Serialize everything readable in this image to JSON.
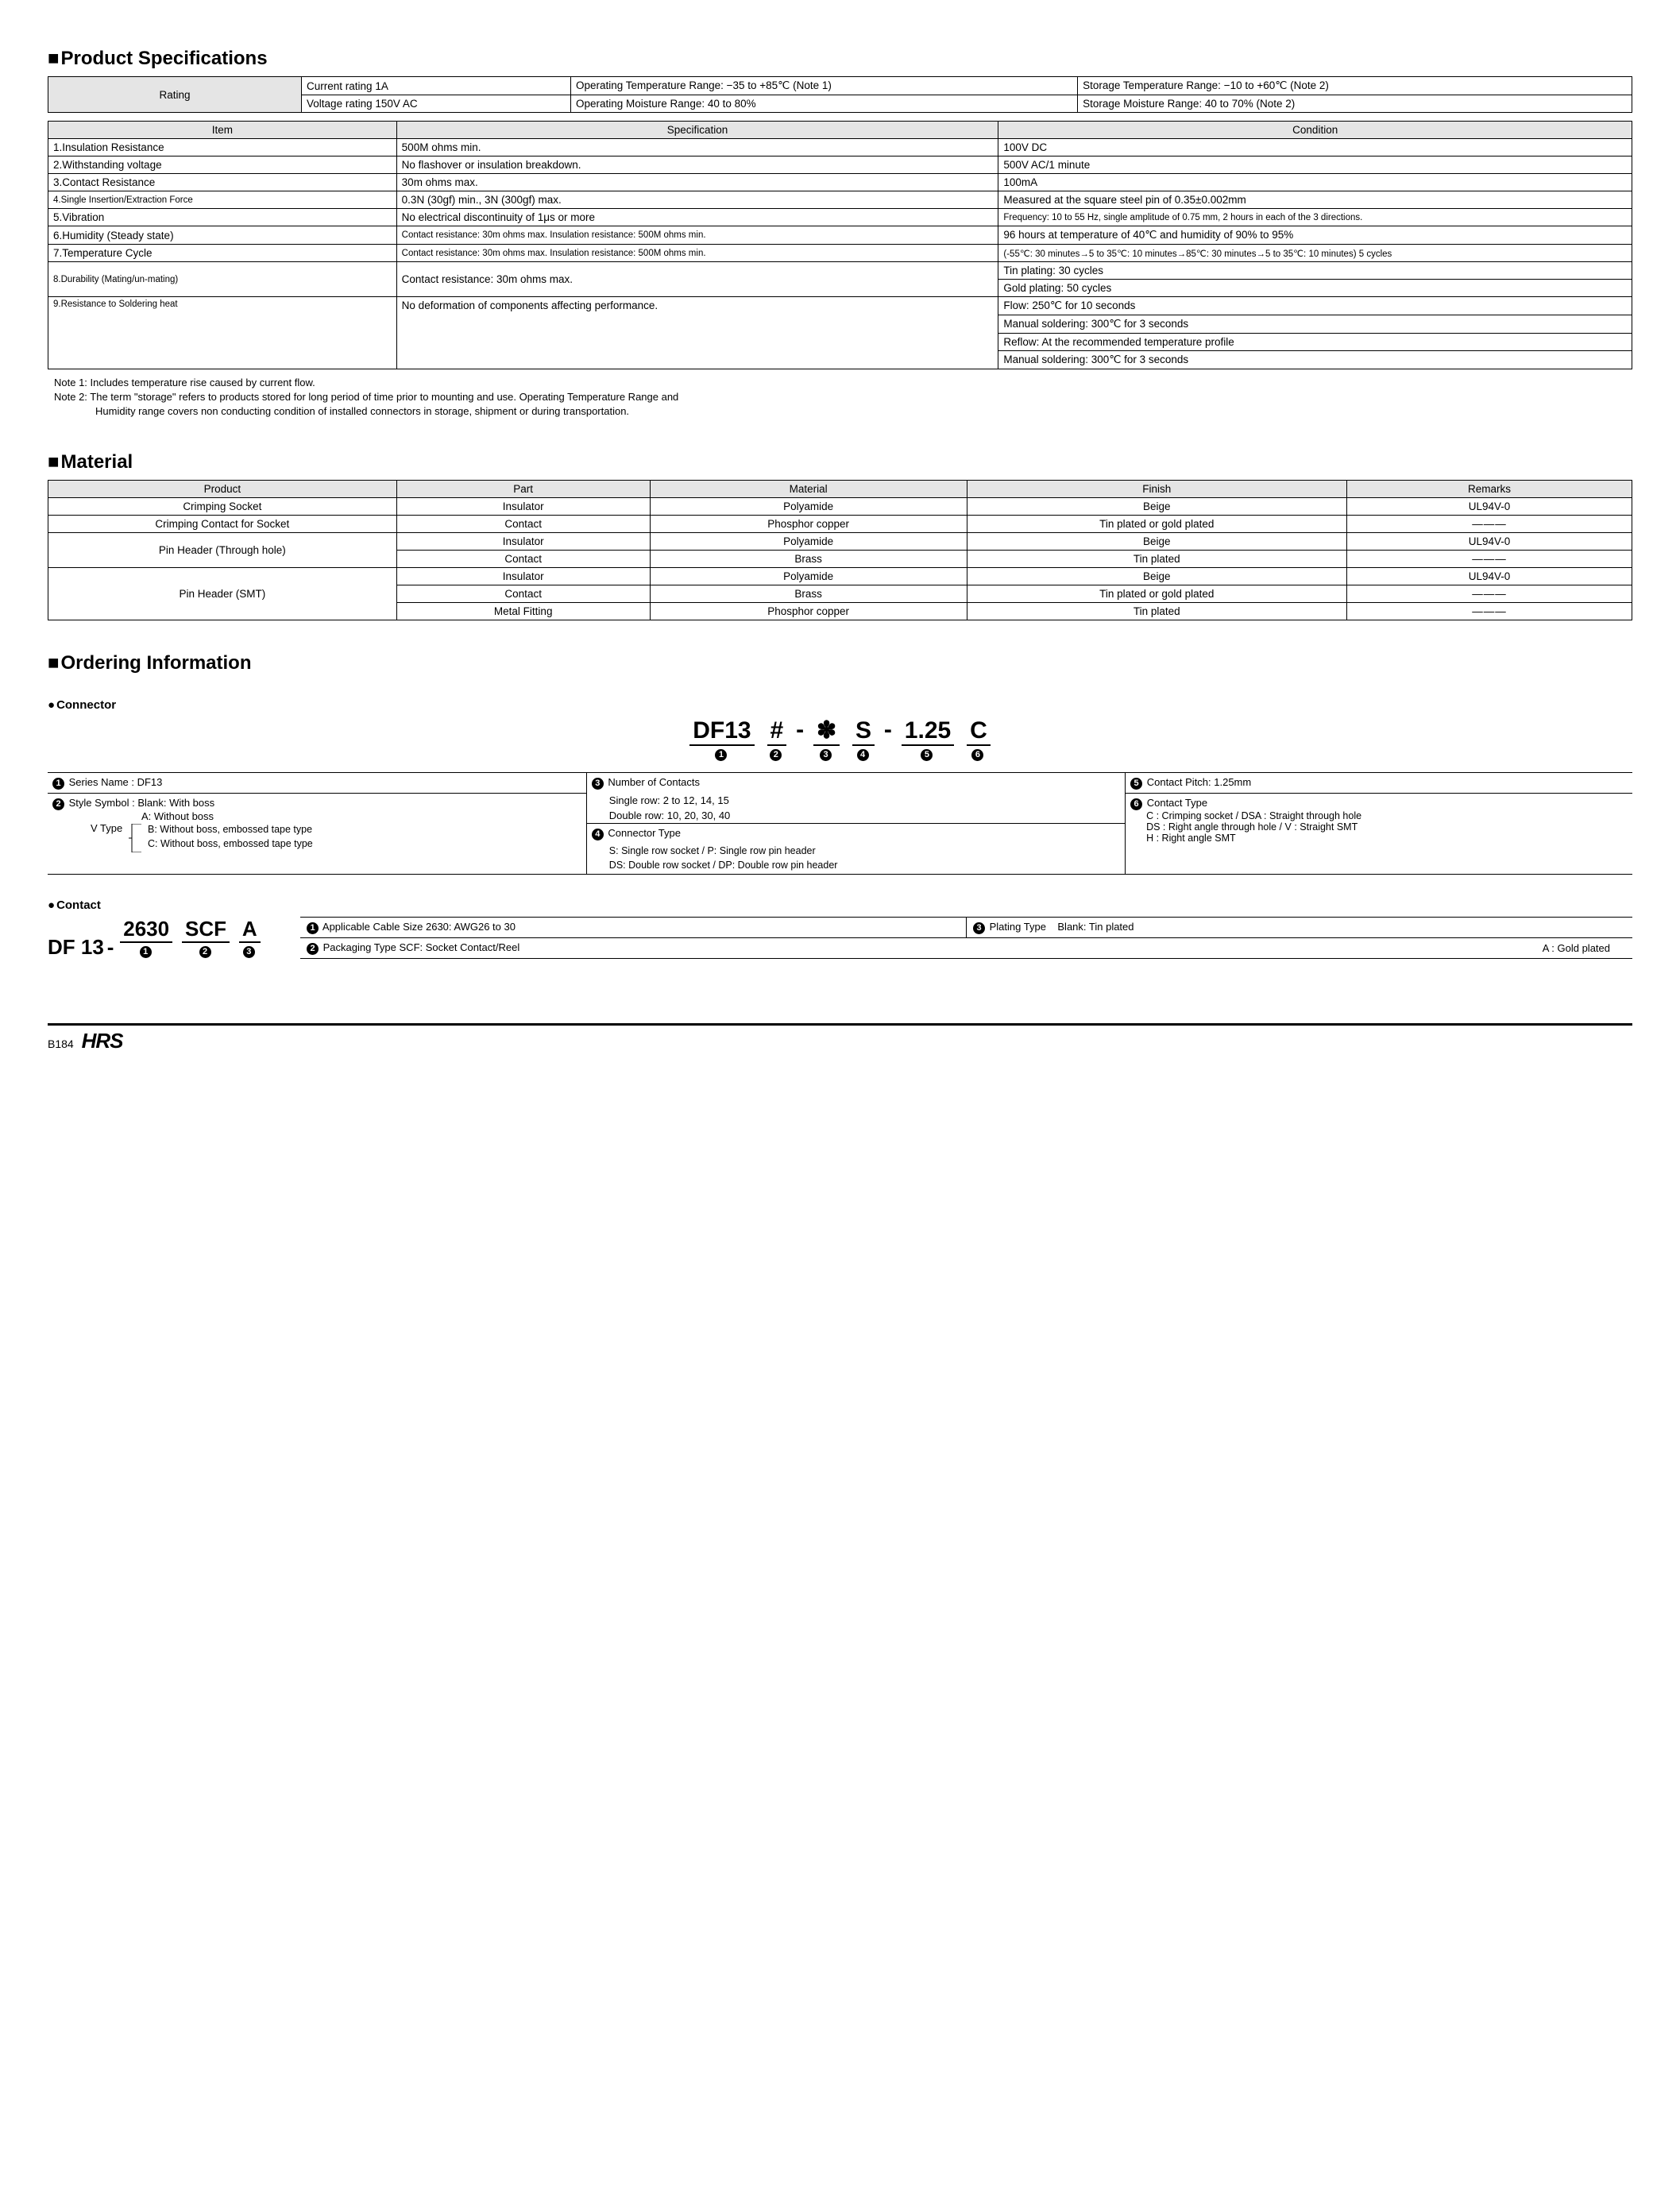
{
  "sections": {
    "spec_title": "Product Specifications",
    "material_title": "Material",
    "ordering_title": "Ordering Information"
  },
  "rating_table": {
    "label": "Rating",
    "current": "Current rating  1A",
    "voltage": "Voltage rating  150V AC",
    "op_temp": "Operating Temperature Range: −35 to +85℃ (Note 1)",
    "op_moist": "Operating Moisture Range: 40 to 80%",
    "st_temp": "Storage Temperature Range: −10 to +60℃ (Note 2)",
    "st_moist": "Storage Moisture Range: 40 to 70%        (Note 2)"
  },
  "spec_headers": {
    "item": "Item",
    "spec": "Specification",
    "cond": "Condition"
  },
  "spec_rows": [
    {
      "item": "1.Insulation Resistance",
      "spec": "500M ohms min.",
      "cond": "100V DC"
    },
    {
      "item": "2.Withstanding voltage",
      "spec": "No flashover or insulation breakdown.",
      "cond": "500V AC/1 minute"
    },
    {
      "item": "3.Contact Resistance",
      "spec": "30m ohms max.",
      "cond": "100mA"
    },
    {
      "item": "4.Single Insertion/Extraction Force",
      "spec": "0.3N (30gf) min., 3N (300gf) max.",
      "cond": "Measured at the square steel pin of 0.35±0.002mm",
      "item_small": true
    },
    {
      "item": "5.Vibration",
      "spec": "No electrical discontinuity of 1μs or more",
      "cond": "Frequency: 10 to 55 Hz, single amplitude of 0.75 mm, 2 hours in each of the 3 directions.",
      "cond_small": true
    },
    {
      "item": "6.Humidity (Steady state)",
      "spec": "Contact resistance: 30m ohms max. Insulation resistance: 500M ohms min.",
      "cond": "96 hours at temperature of 40℃ and humidity of 90% to 95%",
      "spec_small": true
    },
    {
      "item": "7.Temperature Cycle",
      "spec": "Contact resistance: 30m ohms max. Insulation resistance: 500M ohms min.",
      "cond": "(-55℃: 30 minutes→5 to 35℃: 10 minutes→85℃: 30 minutes→5 to 35℃: 10 minutes) 5 cycles",
      "spec_small": true,
      "cond_small": true
    }
  ],
  "spec_row8": {
    "item": "8.Durability (Mating/un-mating)",
    "spec": "Contact resistance: 30m ohms max.",
    "cond1": "Tin plating: 30 cycles",
    "cond2": "Gold plating: 50 cycles"
  },
  "spec_row9": {
    "item": "9.Resistance to Soldering heat",
    "spec": "No deformation of components affecting performance.",
    "cond1": "Flow: 250℃ for 10 seconds",
    "cond2": "Manual soldering: 300℃ for 3 seconds",
    "cond3": "Reflow: At the recommended temperature profile",
    "cond4": "Manual soldering: 300℃ for 3 seconds"
  },
  "notes": {
    "n1": "Note 1: Includes temperature rise caused by current flow.",
    "n2a": "Note 2: The term \"storage\" refers to products stored for long period of time prior to mounting and use. Operating Temperature Range and",
    "n2b": "Humidity range covers non conducting condition of installed connectors in storage, shipment or during transportation."
  },
  "mat_headers": {
    "c1": "Product",
    "c2": "Part",
    "c3": "Material",
    "c4": "Finish",
    "c5": "Remarks"
  },
  "mat_rows": {
    "r1": {
      "product": "Crimping Socket",
      "part": "Insulator",
      "material": "Polyamide",
      "finish": "Beige",
      "remarks": "UL94V-0"
    },
    "r2": {
      "product": "Crimping Contact for Socket",
      "part": "Contact",
      "material": "Phosphor copper",
      "finish": "Tin plated or gold plated",
      "remarks": "———"
    },
    "r3": {
      "product": "Pin Header (Through hole)",
      "part": "Insulator",
      "material": "Polyamide",
      "finish": "Beige",
      "remarks": "UL94V-0"
    },
    "r4": {
      "part": "Contact",
      "material": "Brass",
      "finish": "Tin plated",
      "remarks": "———"
    },
    "r5": {
      "product": "Pin Header (SMT)",
      "part": "Insulator",
      "material": "Polyamide",
      "finish": "Beige",
      "remarks": "UL94V-0"
    },
    "r6": {
      "part": "Contact",
      "material": "Brass",
      "finish": "Tin plated or gold plated",
      "remarks": "———"
    },
    "r7": {
      "part": "Metal Fitting",
      "material": "Phosphor copper",
      "finish": "Tin plated",
      "remarks": "———"
    }
  },
  "connector_sub": "Connector",
  "contact_sub": "Contact",
  "conn_formula": {
    "p1": "DF13",
    "p2": "#",
    "p3": "✽",
    "p4": "S",
    "p5": "1.25",
    "p6": "C",
    "dash": "-"
  },
  "conn_desc": {
    "l1": "Series Name      : DF13",
    "l2": "Style Symbol     : Blank: With boss",
    "l3": "A: Without boss",
    "l4": "V Type",
    "l4b": "B: Without boss, embossed tape type",
    "l4c": "C: Without boss, embossed tape type",
    "m1": "Number of Contacts",
    "m2": "Single row: 2 to 12, 14, 15",
    "m3": "Double row: 10, 20, 30, 40",
    "m4": "Connector Type",
    "m5": "S: Single row socket / P: Single row pin header",
    "m6": "DS: Double row socket / DP: Double row pin header",
    "r1": "Contact Pitch: 1.25mm",
    "r2": "Contact Type",
    "r3": "C : Crimping socket / DSA : Straight through hole",
    "r4": "DS : Right angle through hole / V : Straight SMT",
    "r5": "H : Right angle SMT"
  },
  "contact_formula": {
    "p0": "DF 13",
    "dash": "-",
    "p1": "2630",
    "p2": "SCF",
    "p3": "A"
  },
  "contact_desc": {
    "c1": "Applicable Cable Size  2630: AWG26 to 30",
    "c2": "Packaging Type  SCF: Socket Contact/Reel",
    "c3a": "Plating Type",
    "c3b": "Blank: Tin plated",
    "c4": "A   : Gold plated"
  },
  "footer": {
    "page": "B184",
    "logo": "HRS"
  }
}
